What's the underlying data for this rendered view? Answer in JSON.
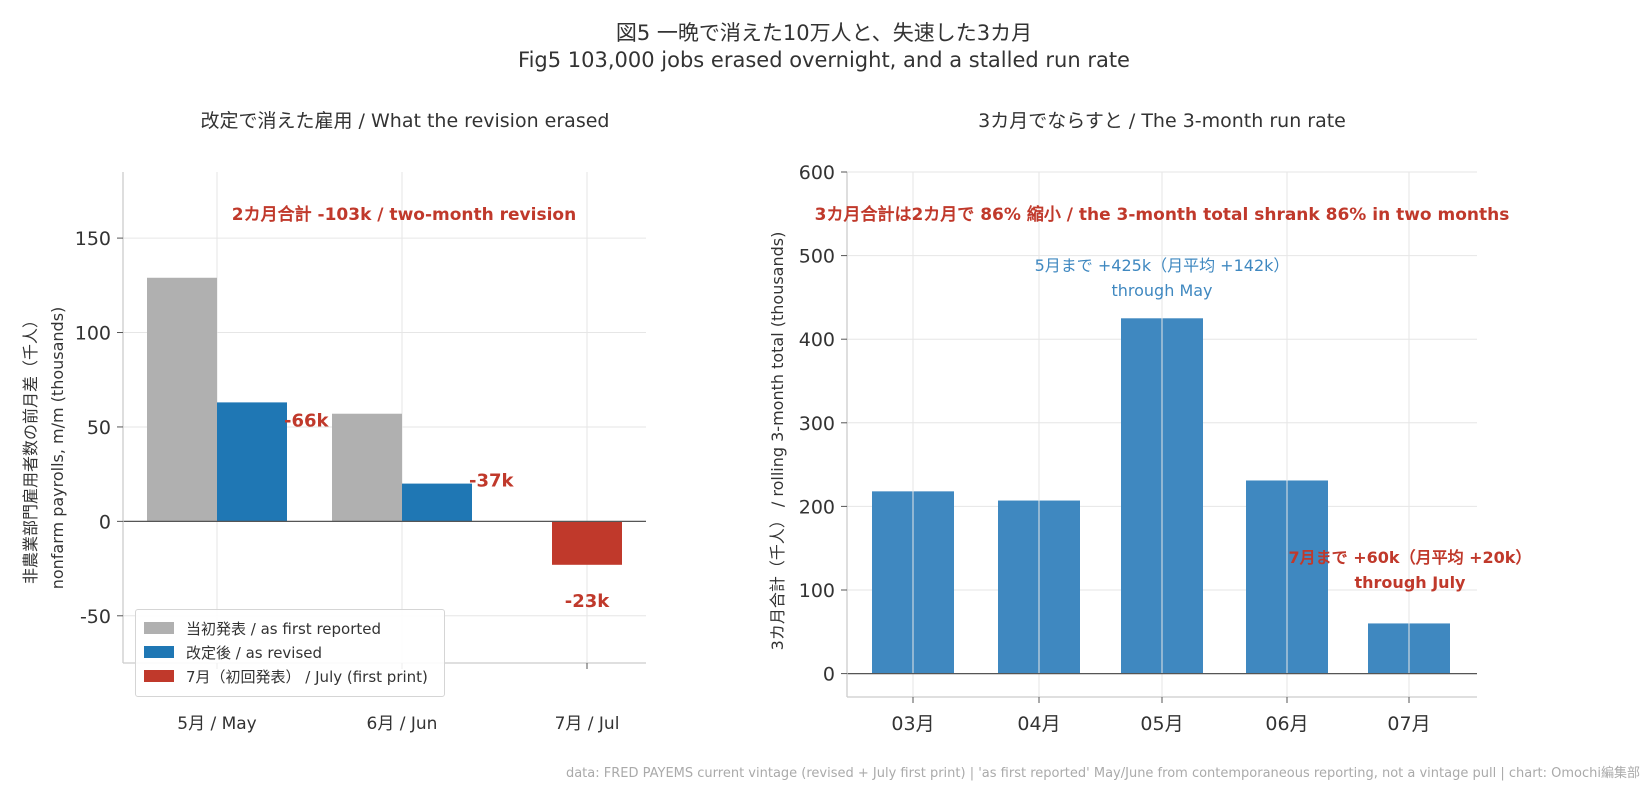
{
  "figure": {
    "title_ja": "図5 一晩で消えた10万人と、失速した3カ月",
    "title_en": "Fig5 103,000 jobs erased overnight, and a stalled run rate",
    "source": "data: FRED PAYEMS current vintage (revised + July first print) | 'as first reported' May/June from contemporaneous reporting, not a vintage pull | chart: Omochi編集部"
  },
  "chart_data": [
    {
      "type": "bar",
      "title": "改定で消えた雇用 / What the revision erased",
      "ylabel_line1": "非農業部門雇用者数の前月差（千人）",
      "ylabel_line2": "nonfarm payrolls, m/m (thousands)",
      "xlabel": "",
      "categories": [
        "5月 / May",
        "6月 / Jun",
        "7月 / Jul"
      ],
      "ylim": [
        -75,
        185
      ],
      "yticks": [
        -50,
        0,
        50,
        100,
        150
      ],
      "grid": true,
      "legend_position": "lower-left",
      "series": [
        {
          "name": "当初発表 / as first reported",
          "color": "#b0b0b0",
          "values": [
            129,
            57,
            null
          ]
        },
        {
          "name": "改定後 / as revised",
          "color": "#1f77b4",
          "values": [
            63,
            20,
            null
          ]
        },
        {
          "name": "7月（初回発表） / July (first print)",
          "color": "#c0392b",
          "values": [
            null,
            null,
            -23
          ]
        }
      ],
      "data_labels": [
        "-66k",
        "-37k",
        "-23k"
      ],
      "annotation": "2カ月合計 -103k / two-month revision",
      "colors": {
        "annotation": "#c0392b"
      }
    },
    {
      "type": "bar",
      "title": "3カ月でならすと / The 3-month run rate",
      "ylabel": "3カ月合計（千人） / rolling 3-month total (thousands)",
      "xlabel": "",
      "categories": [
        "03月",
        "04月",
        "05月",
        "06月",
        "07月"
      ],
      "values": [
        218,
        207,
        425,
        231,
        60
      ],
      "ylim": [
        -28,
        600
      ],
      "yticks": [
        0,
        100,
        200,
        300,
        400,
        500,
        600
      ],
      "grid": true,
      "colors": {
        "bar": "#3f88c0",
        "note_blue": "#3f88c0",
        "note_red": "#c0392b"
      },
      "annotation_top": "3カ月合計は2カ月で 86% 縮小 / the 3-month total shrank 86% in two months",
      "note_may_line1": "5月まで +425k（月平均 +142k）",
      "note_may_line2": "through May",
      "note_jul_line1": "7月まで +60k（月平均 +20k）",
      "note_jul_line2": "through July"
    }
  ]
}
